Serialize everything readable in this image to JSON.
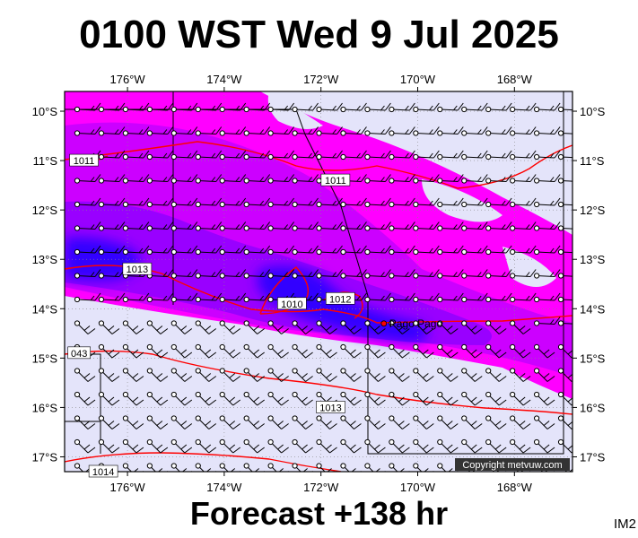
{
  "title": "0100 WST Wed 9 Jul 2025",
  "footer": "Forecast +138 hr",
  "image_id_label": "IM2",
  "copyright": "Copyright metvuw.com",
  "place": "Pago Pago",
  "colors": {
    "pale": "#e4e4fa",
    "magenta": "#ff00ff",
    "violet": "#cc00ff",
    "purple": "#9900ff",
    "blue": "#3300ff",
    "isobar": "#ff0000"
  },
  "chart_data": {
    "type": "map",
    "x_ticks": [
      "176°W",
      "174°W",
      "172°W",
      "170°W",
      "168°W"
    ],
    "x_tick_values": [
      -176,
      -174,
      -172,
      -170,
      -168
    ],
    "y_ticks": [
      "10°S",
      "11°S",
      "12°S",
      "13°S",
      "14°S",
      "15°S",
      "16°S",
      "17°S"
    ],
    "y_tick_values": [
      -10,
      -11,
      -12,
      -13,
      -14,
      -15,
      -16,
      -17
    ],
    "lon_range": [
      -177.3,
      -166.8
    ],
    "lat_range": [
      -17.3,
      -9.6
    ],
    "isobar_labels": [
      {
        "text": "1011",
        "lon": -176.9,
        "lat": -11.0
      },
      {
        "text": "1011",
        "lon": -171.7,
        "lat": -11.4
      },
      {
        "text": "1013",
        "lon": -175.8,
        "lat": -13.2
      },
      {
        "text": "1010",
        "lon": -172.6,
        "lat": -13.9
      },
      {
        "text": "1012",
        "lon": -171.6,
        "lat": -13.8
      },
      {
        "text": "1013",
        "lon": -171.8,
        "lat": -16.0
      },
      {
        "text": "1014",
        "lon": -176.5,
        "lat": -17.3
      },
      {
        "text": "043",
        "lon": -177.0,
        "lat": -14.9
      }
    ],
    "station": {
      "name": "Pago Pago",
      "lon": -170.7,
      "lat": -14.3
    }
  }
}
